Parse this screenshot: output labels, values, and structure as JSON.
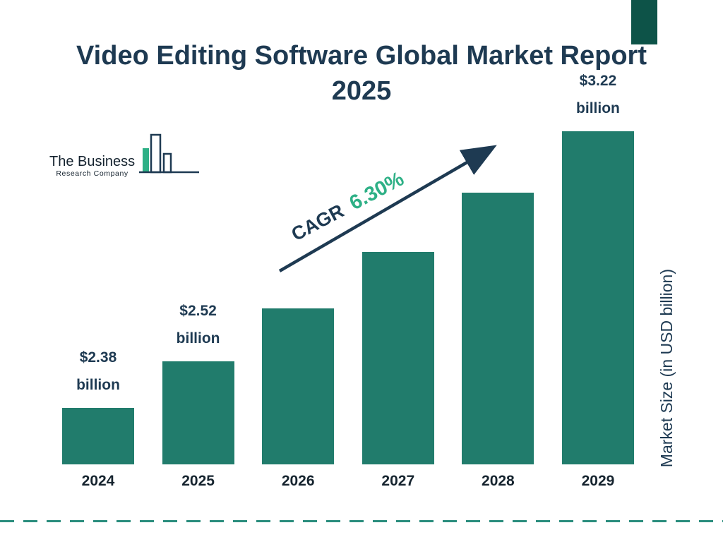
{
  "title": "Video Editing Software Global Market Report 2025",
  "logo": {
    "line1": "The Business",
    "line2": "Research Company"
  },
  "cagr": {
    "prefix": "CAGR",
    "value": "6.30%"
  },
  "ylabel": "Market Size (in USD billion)",
  "colors": {
    "navy": "#1e3a52",
    "teal": "#217c6c",
    "green": "#2eb086",
    "corner": "#0d5348",
    "dash": "#2a8d7d"
  },
  "chart_data": {
    "type": "bar",
    "title": "Video Editing Software Global Market Report 2025",
    "categories": [
      "2024",
      "2025",
      "2026",
      "2027",
      "2028",
      "2029"
    ],
    "values": [
      2.38,
      2.52,
      2.68,
      2.85,
      3.03,
      3.22
    ],
    "unit": "USD billion",
    "ylabel": "Market Size (in USD billion)",
    "cagr": "6.30%",
    "legend": "none",
    "grid": "off",
    "labeled_points": [
      {
        "index": 0,
        "amount": "$2.38",
        "unit": "billion"
      },
      {
        "index": 1,
        "amount": "$2.52",
        "unit": "billion"
      },
      {
        "index": 5,
        "amount": "$3.22",
        "unit": "billion"
      }
    ]
  }
}
